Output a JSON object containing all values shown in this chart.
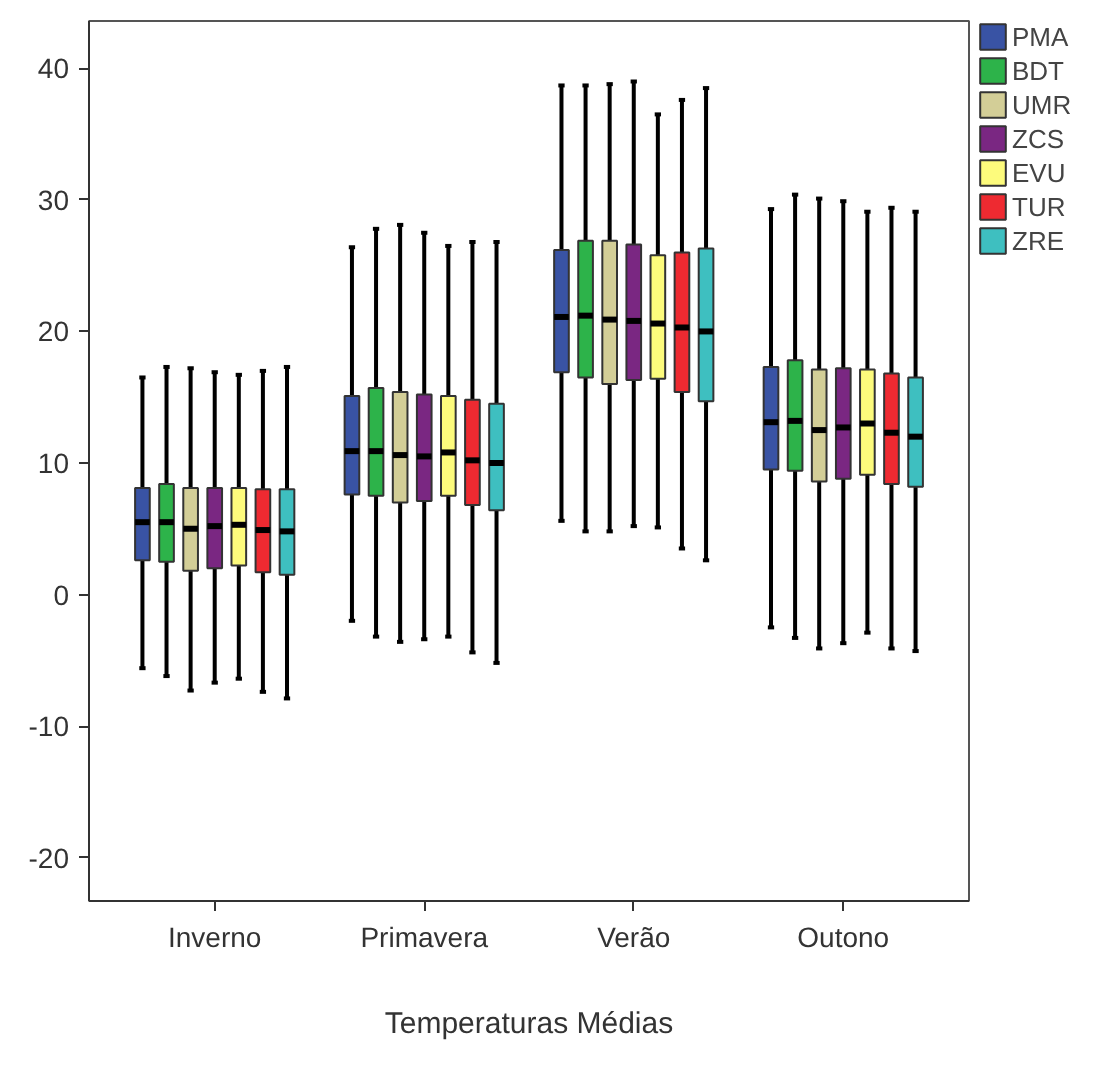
{
  "chart_data": {
    "type": "box",
    "xlabel": "Temperaturas Médias",
    "categories": [
      "Inverno",
      "Primavera",
      "Verão",
      "Outono"
    ],
    "ylim": [
      -23.3,
      43.6
    ],
    "yticks": [
      -20,
      -10,
      0,
      10,
      20,
      30,
      40
    ],
    "grid": false,
    "legend": "top right",
    "series": [
      {
        "name": "PMA",
        "color": "#3953a4",
        "boxes": [
          {
            "low": -5.6,
            "q1": 2.6,
            "median": 5.5,
            "q3": 8.1,
            "high": 16.5
          },
          {
            "low": -2.0,
            "q1": 7.6,
            "median": 10.9,
            "q3": 15.1,
            "high": 26.4
          },
          {
            "low": 5.6,
            "q1": 16.9,
            "median": 21.1,
            "q3": 26.2,
            "high": 38.7
          },
          {
            "low": -2.5,
            "q1": 9.5,
            "median": 13.1,
            "q3": 17.3,
            "high": 29.3
          }
        ]
      },
      {
        "name": "BDT",
        "color": "#2db34a",
        "boxes": [
          {
            "low": -6.2,
            "q1": 2.5,
            "median": 5.5,
            "q3": 8.4,
            "high": 17.3
          },
          {
            "low": -3.2,
            "q1": 7.5,
            "median": 10.9,
            "q3": 15.7,
            "high": 27.8
          },
          {
            "low": 4.8,
            "q1": 16.5,
            "median": 21.2,
            "q3": 26.9,
            "high": 38.7
          },
          {
            "low": -3.3,
            "q1": 9.4,
            "median": 13.2,
            "q3": 17.8,
            "high": 30.4
          }
        ]
      },
      {
        "name": "UMR",
        "color": "#d3ce97",
        "boxes": [
          {
            "low": -7.3,
            "q1": 1.8,
            "median": 5.0,
            "q3": 8.1,
            "high": 17.2
          },
          {
            "low": -3.6,
            "q1": 7.0,
            "median": 10.6,
            "q3": 15.4,
            "high": 28.1
          },
          {
            "low": 4.8,
            "q1": 16.0,
            "median": 20.9,
            "q3": 26.9,
            "high": 38.8
          },
          {
            "low": -4.1,
            "q1": 8.6,
            "median": 12.5,
            "q3": 17.1,
            "high": 30.1
          }
        ]
      },
      {
        "name": "ZCS",
        "color": "#7a2782",
        "boxes": [
          {
            "low": -6.7,
            "q1": 2.0,
            "median": 5.2,
            "q3": 8.1,
            "high": 16.9
          },
          {
            "low": -3.4,
            "q1": 7.1,
            "median": 10.5,
            "q3": 15.2,
            "high": 27.5
          },
          {
            "low": 5.2,
            "q1": 16.3,
            "median": 20.8,
            "q3": 26.6,
            "high": 39.0
          },
          {
            "low": -3.7,
            "q1": 8.8,
            "median": 12.7,
            "q3": 17.2,
            "high": 29.9
          }
        ]
      },
      {
        "name": "EVU",
        "color": "#fdfb7c",
        "boxes": [
          {
            "low": -6.4,
            "q1": 2.2,
            "median": 5.3,
            "q3": 8.1,
            "high": 16.7
          },
          {
            "low": -3.2,
            "q1": 7.5,
            "median": 10.8,
            "q3": 15.1,
            "high": 26.5
          },
          {
            "low": 5.1,
            "q1": 16.4,
            "median": 20.6,
            "q3": 25.8,
            "high": 36.5
          },
          {
            "low": -2.9,
            "q1": 9.1,
            "median": 13.0,
            "q3": 17.1,
            "high": 29.1
          }
        ]
      },
      {
        "name": "TUR",
        "color": "#ee2a31",
        "boxes": [
          {
            "low": -7.4,
            "q1": 1.7,
            "median": 4.9,
            "q3": 8.0,
            "high": 17.0
          },
          {
            "low": -4.4,
            "q1": 6.8,
            "median": 10.2,
            "q3": 14.8,
            "high": 26.8
          },
          {
            "low": 3.5,
            "q1": 15.4,
            "median": 20.3,
            "q3": 26.0,
            "high": 37.6
          },
          {
            "low": -4.1,
            "q1": 8.4,
            "median": 12.3,
            "q3": 16.8,
            "high": 29.4
          }
        ]
      },
      {
        "name": "ZRE",
        "color": "#3ebfc0",
        "boxes": [
          {
            "low": -7.9,
            "q1": 1.5,
            "median": 4.8,
            "q3": 8.0,
            "high": 17.3
          },
          {
            "low": -5.2,
            "q1": 6.4,
            "median": 10.0,
            "q3": 14.5,
            "high": 26.8
          },
          {
            "low": 2.6,
            "q1": 14.7,
            "median": 20.0,
            "q3": 26.3,
            "high": 38.5
          },
          {
            "low": -4.3,
            "q1": 8.2,
            "median": 12.0,
            "q3": 16.5,
            "high": 29.1
          }
        ]
      }
    ]
  }
}
